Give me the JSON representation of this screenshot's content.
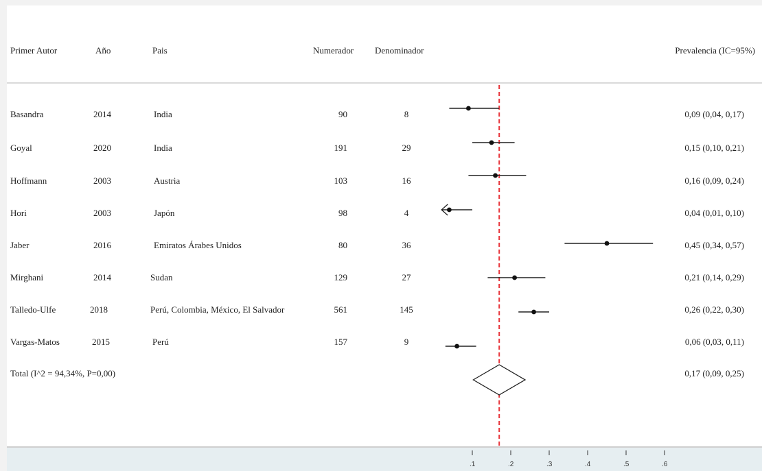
{
  "headers": {
    "author": "Primer Autor",
    "year": "Año",
    "country": "Pais",
    "numerator": "Numerador",
    "denominator": "Denominador",
    "prevalence": "Prevalencia (IC=95%)"
  },
  "colors": {
    "reference_line": "#e8343a",
    "marker": "#111111",
    "axis_band": "#e6eef1"
  },
  "chart_data": {
    "type": "forest",
    "xlim": [
      0.0,
      0.6
    ],
    "xticks": [
      0.1,
      0.2,
      0.3,
      0.4,
      0.5,
      0.6
    ],
    "xtick_labels": [
      ".1",
      ".2",
      ".3",
      ".4",
      ".5",
      ".6"
    ],
    "reference_line": 0.17,
    "studies": [
      {
        "author": "Basandra",
        "year": "2014",
        "country": "India",
        "numerator": "90",
        "denominator": "8",
        "estimate": 0.09,
        "lower": 0.04,
        "upper": 0.17,
        "label": "0,09 (0,04, 0,17)"
      },
      {
        "author": "Goyal",
        "year": "2020",
        "country": "India",
        "numerator": "191",
        "denominator": "29",
        "estimate": 0.15,
        "lower": 0.1,
        "upper": 0.21,
        "label": "0,15 (0,10, 0,21)"
      },
      {
        "author": "Hoffmann",
        "year": "2003",
        "country": "Austria",
        "numerator": "103",
        "denominator": "16",
        "estimate": 0.16,
        "lower": 0.09,
        "upper": 0.24,
        "label": "0,16 (0,09, 0,24)"
      },
      {
        "author": "Hori",
        "year": "2003",
        "country": "Japón",
        "numerator": "98",
        "denominator": "4",
        "estimate": 0.04,
        "lower": 0.01,
        "upper": 0.1,
        "label": "0,04 (0,01, 0,10)"
      },
      {
        "author": "Jaber",
        "year": "2016",
        "country": "Emiratos Árabes Unidos",
        "numerator": "80",
        "denominator": "36",
        "estimate": 0.45,
        "lower": 0.34,
        "upper": 0.57,
        "label": "0,45 (0,34, 0,57)"
      },
      {
        "author": "Mirghani",
        "year": "2014",
        "country": "Sudan",
        "numerator": "129",
        "denominator": "27",
        "estimate": 0.21,
        "lower": 0.14,
        "upper": 0.29,
        "label": "0,21 (0,14, 0,29)"
      },
      {
        "author": "Talledo-Ulfe",
        "year": "2018",
        "country": "Perú, Colombia, México, El Salvador",
        "numerator": "561",
        "denominator": "145",
        "estimate": 0.26,
        "lower": 0.22,
        "upper": 0.3,
        "label": "0,26 (0,22, 0,30)"
      },
      {
        "author": "Vargas-Matos",
        "year": "2015",
        "country": "Perú",
        "numerator": "157",
        "denominator": "9",
        "estimate": 0.06,
        "lower": 0.03,
        "upper": 0.11,
        "label": "0,06 (0,03, 0,11)"
      }
    ],
    "total": {
      "label": "Total (I^2 = 94,34%, P=0,00)",
      "estimate": 0.17,
      "lower": 0.09,
      "upper": 0.25,
      "value_label": "0,17 (0,09, 0,25)"
    }
  }
}
